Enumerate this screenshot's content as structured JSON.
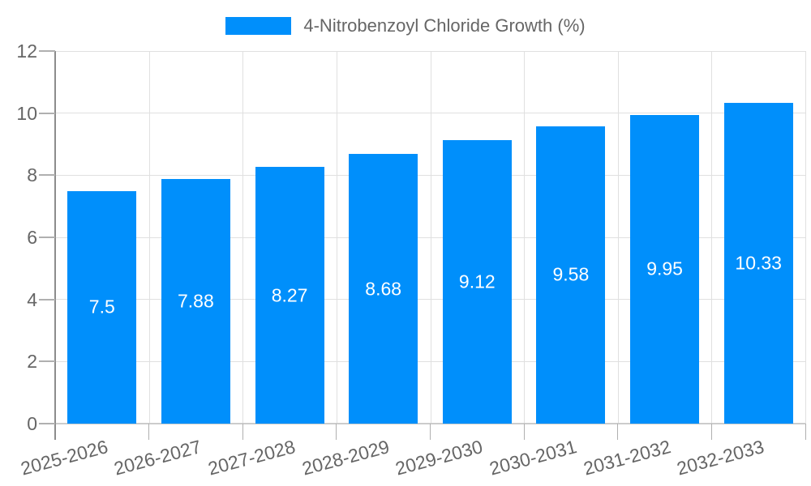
{
  "chart_data": {
    "type": "bar",
    "title": "",
    "legend_position": "top",
    "legend": [
      {
        "label": "4-Nitrobenzoyl Chloride Growth (%)",
        "color": "#008FFB"
      }
    ],
    "categories": [
      "2025-2026",
      "2026-2027",
      "2027-2028",
      "2028-2029",
      "2029-2030",
      "2030-2031",
      "2031-2032",
      "2032-2033"
    ],
    "series": [
      {
        "name": "4-Nitrobenzoyl Chloride Growth (%)",
        "values": [
          7.5,
          7.88,
          8.27,
          8.68,
          9.12,
          9.58,
          9.95,
          10.33
        ]
      }
    ],
    "value_labels": [
      "7.5",
      "7.88",
      "8.27",
      "8.68",
      "9.12",
      "9.58",
      "9.95",
      "10.33"
    ],
    "xlabel": "",
    "ylabel": "",
    "ylim": [
      0,
      12
    ],
    "y_ticks": [
      0,
      2,
      4,
      6,
      8,
      10,
      12
    ],
    "y_tick_labels": [
      "0",
      "2",
      "4",
      "6",
      "8",
      "10",
      "12"
    ],
    "grid": true,
    "value_label_position": "inside-center"
  },
  "colors": {
    "bar": "#008FFB",
    "grid": "#e0e0e0",
    "axis_y": "#8c8c8c",
    "axis_x": "#cccccc",
    "tick": "#b0b0b0",
    "tick_label": "#666666",
    "legend_text": "#666666",
    "value_label": "#ffffff",
    "background": "#ffffff"
  }
}
